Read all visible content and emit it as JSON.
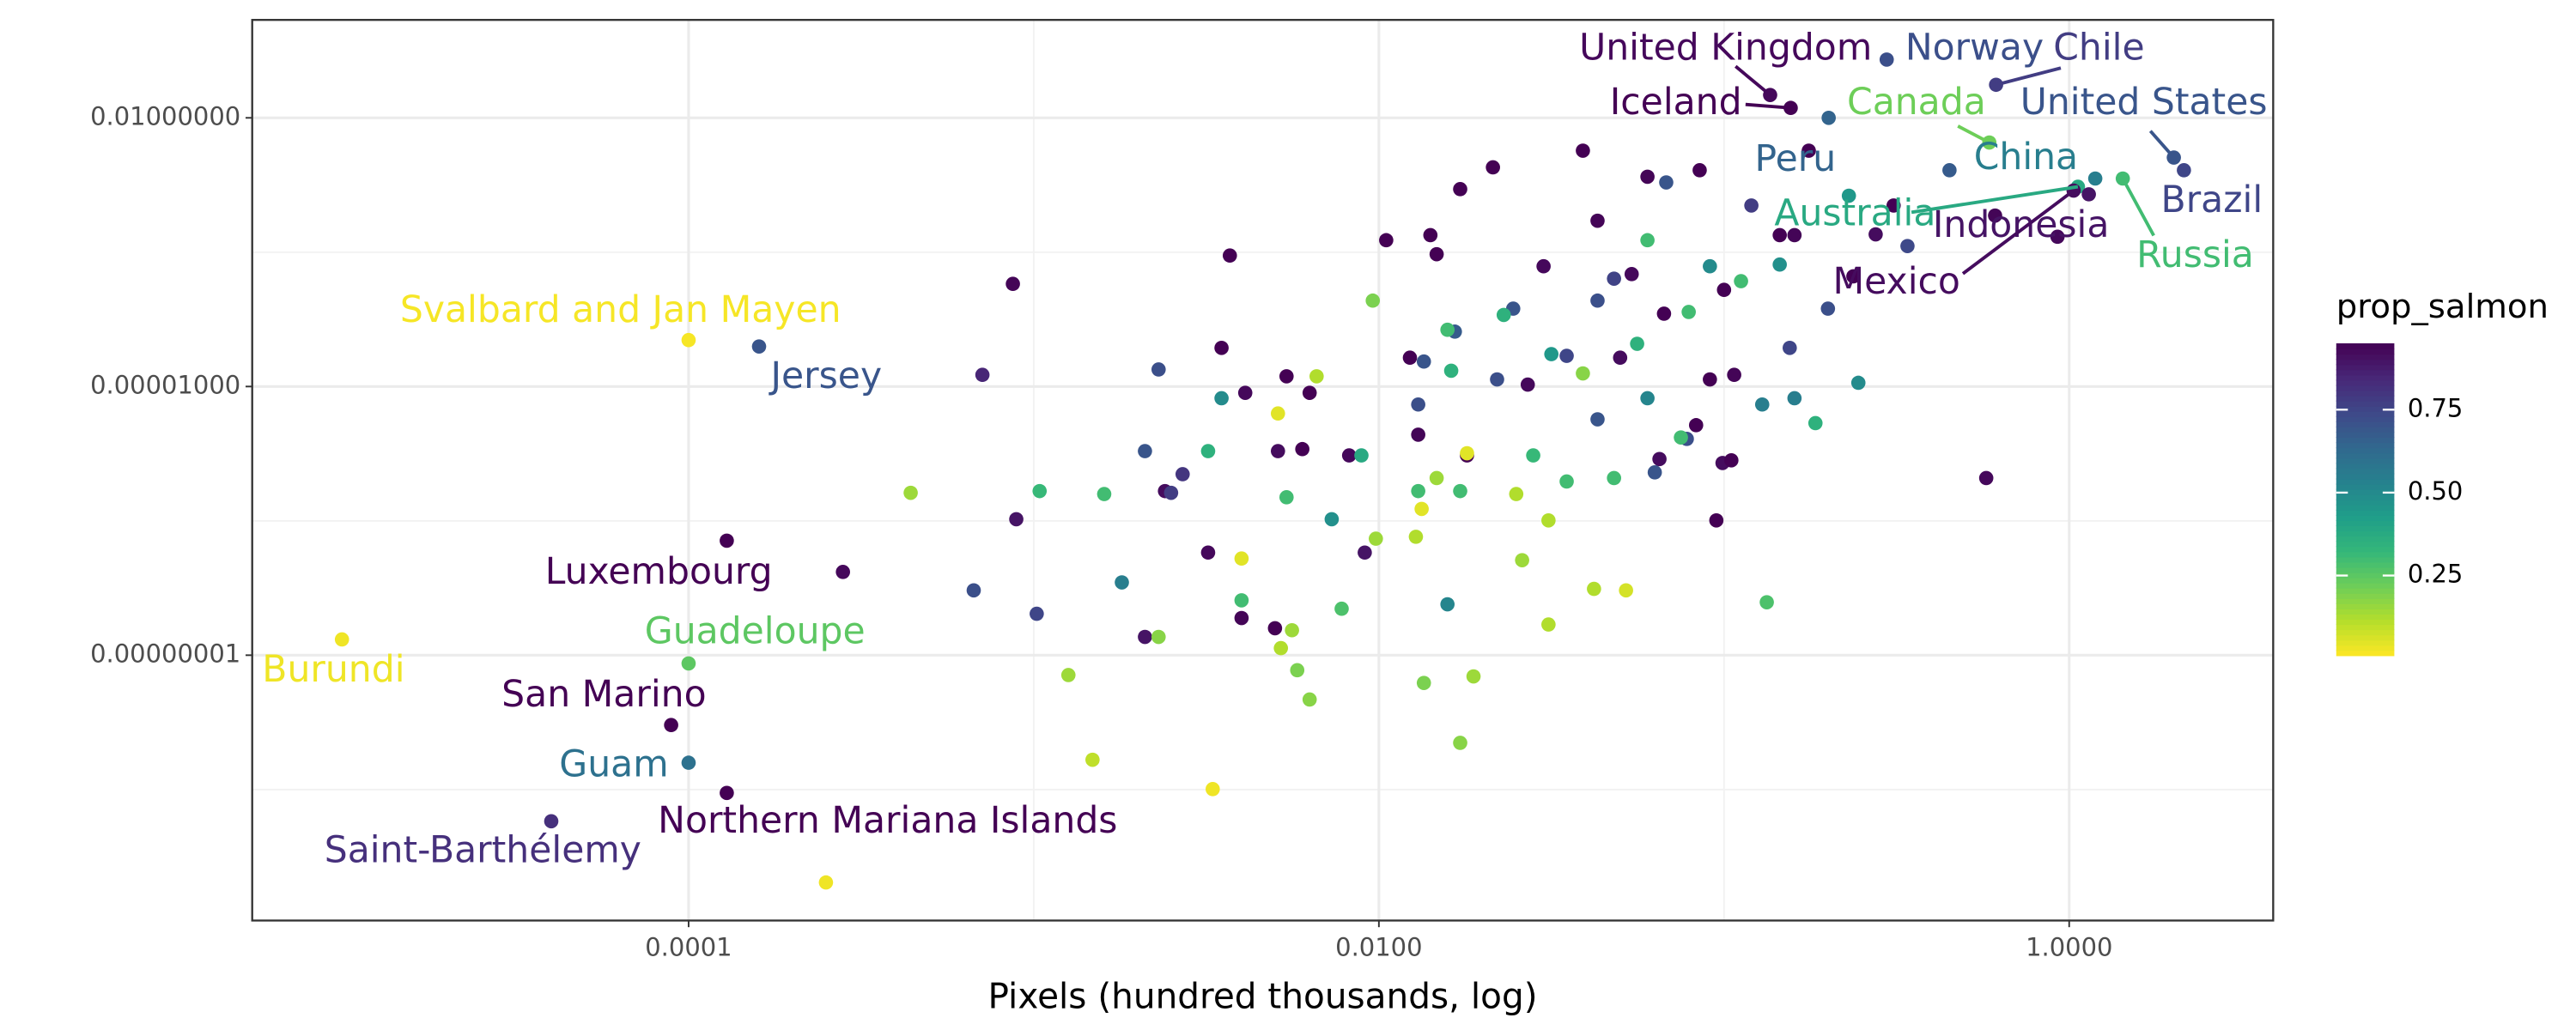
{
  "chart_data": {
    "type": "scatter",
    "x_label": "Pixels (hundred thousands, log)",
    "x_log": true,
    "y_log": true,
    "grid": true,
    "xlim": [
      5.44e-06,
      3.9
    ],
    "ylim": [
      1.09e-11,
      0.124
    ],
    "xticks": [
      0.0001,
      {
        "value": 0.01,
        "label": "0.0100"
      },
      {
        "value": 1,
        "label": "1.0000"
      }
    ],
    "yticks": [
      {
        "value": 1e-08,
        "label": "0.00000001"
      },
      {
        "value": 1e-05,
        "label": "0.00001000"
      },
      {
        "value": 0.01,
        "label": "0.01000000"
      }
    ],
    "x_minor_grid": [
      0.001,
      0.1
    ],
    "y_minor_grid": [
      3.16e-10,
      3.16e-07,
      0.000316
    ],
    "color_title": "prop_salmon",
    "colormap": "viridis_r",
    "colorbar_lim": [
      0.01,
      0.95
    ],
    "colorbar_ticks": [
      0.25,
      {
        "value": 0.5,
        "label": "0.50"
      },
      0.75
    ],
    "labels": [
      "United Kingdom",
      "Iceland",
      "Norway",
      "Chile",
      "Canada",
      "United States",
      "Brazil",
      "Peru",
      "China",
      "Australia",
      "Indonesia",
      "Mexico",
      "Russia",
      "Svalbard and Jan Mayen",
      "Jersey",
      "Luxembourg",
      "Guadeloupe",
      "Burundi",
      "San Marino",
      "Guam",
      "Northern Mariana Islands",
      "Saint-Barthélemy",
      null,
      null,
      null,
      null,
      null,
      null,
      null,
      null,
      null,
      null,
      null,
      null,
      null,
      null,
      null,
      null,
      null,
      null,
      null,
      null,
      null,
      null,
      null,
      null,
      null,
      null,
      null,
      null,
      null,
      null,
      null,
      null,
      null,
      null,
      null,
      null,
      null,
      null,
      null,
      null,
      null,
      null,
      null,
      null,
      null,
      null,
      null,
      null,
      null,
      null,
      null,
      null,
      null,
      null,
      null,
      null,
      null,
      null,
      null,
      null,
      null,
      null,
      null,
      null,
      null,
      null,
      null,
      null,
      null,
      null,
      null,
      null,
      null,
      null,
      null,
      null,
      null,
      null,
      null,
      null,
      null,
      null,
      null,
      null,
      null,
      null,
      null,
      null,
      null,
      null,
      null,
      null,
      null,
      null,
      null,
      null,
      null,
      null,
      null,
      null,
      null,
      null,
      null,
      null,
      null,
      null,
      null,
      null,
      null,
      null,
      null,
      null,
      null,
      null,
      null,
      null,
      null,
      null,
      null,
      null,
      null,
      null,
      null,
      null,
      null,
      null,
      null,
      null,
      null,
      null,
      null,
      null,
      null,
      null,
      null,
      null,
      null,
      null
    ],
    "x": [
      0.136,
      0.156,
      0.296,
      0.614,
      0.587,
      2.01,
      2.15,
      0.201,
      1.19,
      1.06,
      1.14,
      1.03,
      1.43,
      0.0001,
      0.00016,
      0.000129,
      0.0001,
      9.9e-06,
      8.9e-05,
      0.0001,
      0.000129,
      4e-05,
      0.176,
      0.575,
      0.095,
      0.099,
      0.067,
      0.043,
      0.03,
      0.0147,
      0.0141,
      0.0105,
      0.013,
      0.0123,
      0.0091,
      0.0082,
      0.0054,
      0.006,
      0.0041,
      0.0063,
      0.0051,
      0.004,
      0.005,
      0.0032,
      0.0035,
      0.0037,
      0.00087,
      0.00071,
      0.00089,
      0.00028,
      0.0024,
      0.0021,
      0.0172,
      0.0214,
      0.039,
      0.06,
      0.085,
      0.054,
      0.1,
      0.145,
      0.16,
      0.275,
      0.31,
      0.61,
      0.925,
      0.091,
      0.107,
      0.083,
      0.027,
      0.018,
      0.05,
      0.237,
      0.105,
      0.065,
      0.0023,
      0.0021,
      0.0025,
      0.00067,
      0.00102,
      0.0027,
      0.013,
      0.0135,
      0.0166,
      0.022,
      0.0245,
      0.035,
      0.043,
      0.043,
      0.068,
      0.048,
      0.12,
      0.2,
      0.155,
      0.34,
      0.078,
      0.063,
      0.45,
      0.0035,
      0.0018,
      0.0073,
      0.0158,
      0.091,
      0.129,
      0.245,
      0.16,
      0.145,
      0.06,
      0.0316,
      0.23,
      0.00104,
      0.0016,
      0.0032,
      0.004,
      0.0054,
      0.0078,
      0.0089,
      0.013,
      0.0158,
      0.023,
      0.028,
      0.035,
      0.056,
      0.06,
      0.184,
      0.112,
      0.079,
      0.133,
      0.0172,
      0.0162,
      0.048,
      0.075,
      0.00044,
      0.00126,
      0.0023,
      0.0052,
      0.0058,
      0.0063,
      0.0056,
      0.0098,
      0.0128,
      0.0135,
      0.0172,
      0.0188,
      0.025,
      0.026,
      0.031,
      0.031,
      0.042,
      0.0096,
      0.0147,
      0.039,
      0.0066,
      0.00148,
      0.0033,
      0.00025,
      0.004,
      0.0051,
      0.018,
      0.0133,
      0.052
    ],
    "y": [
      0.018,
      0.0129,
      0.0447,
      0.0234,
      0.0053,
      0.0036,
      0.0026,
      0.01,
      0.0021,
      0.0017,
      0.0014,
      0.00154,
      0.0021,
      3.3e-05,
      2.8e-05,
      1.9e-07,
      8.1e-09,
      1.5e-08,
      1.66e-09,
      6.3e-10,
      2.9e-10,
      1.4e-10,
      0.0043,
      9.5e-07,
      3.2e-07,
      1.4e-06,
      6.5e-05,
      0.00071,
      0.00022,
      0.0003,
      0.00049,
      0.00043,
      2.9e-06,
      2.1e-05,
      1.4e-07,
      1.7e-06,
      1.3e-05,
      2e-06,
      8.5e-06,
      8.5e-06,
      1.9e-06,
      2.6e-08,
      2e-08,
      1.4e-07,
      2.7e-05,
      0.00029,
      0.00014,
      1.35e-05,
      3.3e-07,
      8.5e-08,
      6.8e-07,
      1.6e-08,
      0.0016,
      0.0028,
      0.0043,
      0.0022,
      0.0026,
      0.00018,
      0.00012,
      0.00049,
      0.00049,
      0.0005,
      0.00105,
      0.00081,
      0.00047,
      1.2e-05,
      1.35e-05,
      3.7e-06,
      1.05e-05,
      1.7e-06,
      2.1e-05,
      0.00017,
      1.5e-06,
      1.55e-06,
      1.55e-05,
      1.9e-06,
      6.5e-07,
      5.3e-08,
      2.9e-08,
      1.05e-06,
      6.3e-06,
      1.9e-05,
      4.1e-05,
      1.2e-05,
      7.4e-05,
      2.2e-05,
      4.3e-06,
      9.1e-05,
      0.0019,
      0.00016,
      0.00105,
      7.4e-05,
      2.7e-05,
      0.00037,
      2.6e-06,
      1.1e-06,
      0.0026,
      7.4e-06,
      6.5e-08,
      3.3e-07,
      3.7e-08,
      0.00022,
      6.3e-06,
      1.1e-05,
      7.4e-06,
      0.00023,
      7.4e-06,
      2.3e-05,
      0.00135,
      6.8e-07,
      6.3e-07,
      1.9e-06,
      4.1e-08,
      5.8e-07,
      3.3e-08,
      1.7e-06,
      6.8e-07,
      4.3e-05,
      6.3e-05,
      1.7e-06,
      8.7e-07,
      3e-05,
      0.00043,
      3.9e-06,
      0.00015,
      6.8e-05,
      3.9e-08,
      6.8e-07,
      1.5e-05,
      9.5e-07,
      2.7e-06,
      6.5e-07,
      6e-09,
      1.6e-08,
      1.2e-08,
      6.8e-09,
      3.2e-09,
      1.9e-08,
      2e-07,
      2.1e-07,
      4.9e-09,
      1.05e-09,
      5.8e-09,
      6.3e-07,
      1.15e-07,
      3.2e-07,
      2.2e-08,
      5.5e-08,
      9.1e-05,
      9.5e-07,
      1.4e-05,
      1.3e-05,
      6.8e-10,
      3.2e-10,
      2.9e-11,
      1.2e-07,
      5e-06,
      1.8e-06,
      4.3e-07,
      5.3e-08
    ],
    "prop_salmon": [
      0.93,
      0.95,
      0.72,
      0.78,
      0.22,
      0.7,
      0.75,
      0.65,
      0.55,
      0.38,
      0.9,
      0.92,
      0.3,
      0.02,
      0.7,
      0.95,
      0.25,
      0.03,
      0.95,
      0.6,
      0.95,
      0.82,
      0.95,
      0.93,
      0.95,
      0.92,
      0.95,
      0.94,
      0.93,
      0.95,
      0.96,
      0.95,
      0.94,
      0.95,
      0.9,
      0.93,
      0.95,
      0.95,
      0.93,
      0.95,
      0.92,
      0.94,
      0.95,
      0.93,
      0.95,
      0.95,
      0.94,
      0.85,
      0.9,
      0.93,
      0.92,
      0.9,
      0.95,
      0.96,
      0.95,
      0.94,
      0.95,
      0.93,
      0.95,
      0.95,
      0.94,
      0.92,
      0.95,
      0.94,
      0.93,
      0.95,
      0.94,
      0.95,
      0.93,
      0.95,
      0.92,
      0.95,
      0.95,
      0.92,
      0.72,
      0.7,
      0.78,
      0.72,
      0.75,
      0.8,
      0.72,
      0.7,
      0.68,
      0.72,
      0.7,
      0.75,
      0.7,
      0.72,
      0.7,
      0.76,
      0.78,
      0.72,
      0.75,
      0.74,
      0.72,
      0.7,
      0.68,
      0.5,
      0.55,
      0.48,
      0.52,
      0.5,
      0.55,
      0.5,
      0.55,
      0.48,
      0.52,
      0.45,
      0.45,
      0.32,
      0.3,
      0.35,
      0.3,
      0.3,
      0.28,
      0.38,
      0.3,
      0.3,
      0.35,
      0.32,
      0.3,
      0.35,
      0.3,
      0.35,
      0.3,
      0.3,
      0.28,
      0.3,
      0.35,
      0.3,
      0.3,
      0.15,
      0.15,
      0.18,
      0.12,
      0.2,
      0.18,
      0.15,
      0.15,
      0.12,
      0.2,
      0.18,
      0.15,
      0.12,
      0.15,
      0.12,
      0.12,
      0.12,
      0.2,
      0.15,
      0.18,
      0.12,
      0.1,
      0.03,
      0.03,
      0.05,
      0.05,
      0.05,
      0.05,
      0.07
    ]
  }
}
